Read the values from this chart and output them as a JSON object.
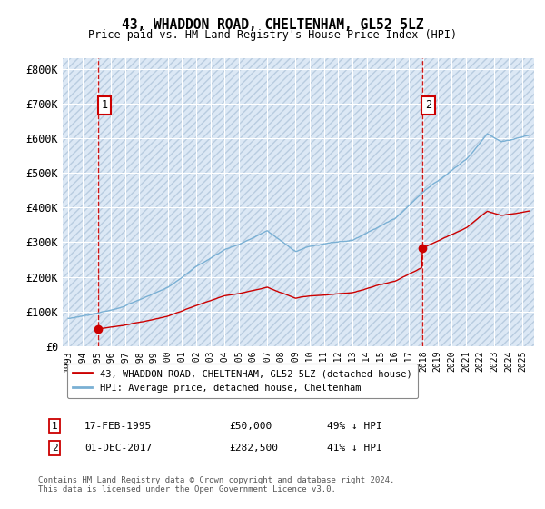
{
  "title": "43, WHADDON ROAD, CHELTENHAM, GL52 5LZ",
  "subtitle": "Price paid vs. HM Land Registry's House Price Index (HPI)",
  "ytick_labels": [
    "£0",
    "£100K",
    "£200K",
    "£300K",
    "£400K",
    "£500K",
    "£600K",
    "£700K",
    "£800K"
  ],
  "yticks": [
    0,
    100000,
    200000,
    300000,
    400000,
    500000,
    600000,
    700000,
    800000
  ],
  "ylim": [
    0,
    830000
  ],
  "xlim_start": 1992.6,
  "xlim_end": 2025.8,
  "hpi_line_color": "#7ab0d4",
  "price_line_color": "#cc0000",
  "dashed_line_color": "#cc0000",
  "marker_color": "#cc0000",
  "t1": 1995.12,
  "p1": 50000,
  "t2": 2017.92,
  "p2": 282500,
  "legend_line1": "43, WHADDON ROAD, CHELTENHAM, GL52 5LZ (detached house)",
  "legend_line2": "HPI: Average price, detached house, Cheltenham",
  "row1_num": "1",
  "row1_date": "17-FEB-1995",
  "row1_price": "£50,000",
  "row1_hpi": "49% ↓ HPI",
  "row2_num": "2",
  "row2_date": "01-DEC-2017",
  "row2_price": "£282,500",
  "row2_hpi": "41% ↓ HPI",
  "footer": "Contains HM Land Registry data © Crown copyright and database right 2024.\nThis data is licensed under the Open Government Licence v3.0.",
  "background_color": "#ffffff",
  "plot_bg_color": "#dce8f5",
  "hatch_color": "#b8cce0",
  "grid_color": "#ffffff"
}
